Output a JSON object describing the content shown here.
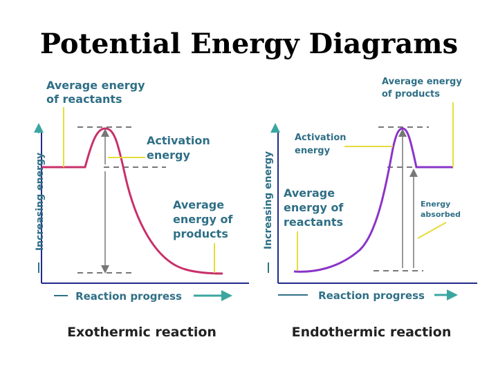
{
  "title": "Potential Energy Diagrams",
  "exothermic": {
    "caption": "Exothermic reaction",
    "y_axis_label": "Increasing energy",
    "x_axis_label": "Reaction progress",
    "reactants_label": [
      "Average energy",
      "of reactants"
    ],
    "activation_label": [
      "Activation",
      "energy"
    ],
    "products_label": [
      "Average",
      "energy of",
      "products"
    ],
    "curve_color": "#c8306a"
  },
  "endothermic": {
    "caption": "Endothermic reaction",
    "y_axis_label": "Increasing energy",
    "x_axis_label": "Reaction progress",
    "products_label": [
      "Average energy",
      "of products"
    ],
    "activation_label": [
      "Activation",
      "energy"
    ],
    "reactants_label": [
      "Average",
      "energy of",
      "reactants"
    ],
    "absorbed_label": [
      "Energy",
      "absorbed"
    ],
    "curve_color": "#8a34c8"
  },
  "colors": {
    "axis": "#1f2a8a",
    "arrow": "#3aa6a0",
    "leader": "#e6dc3c",
    "label": "#2f6f86"
  }
}
